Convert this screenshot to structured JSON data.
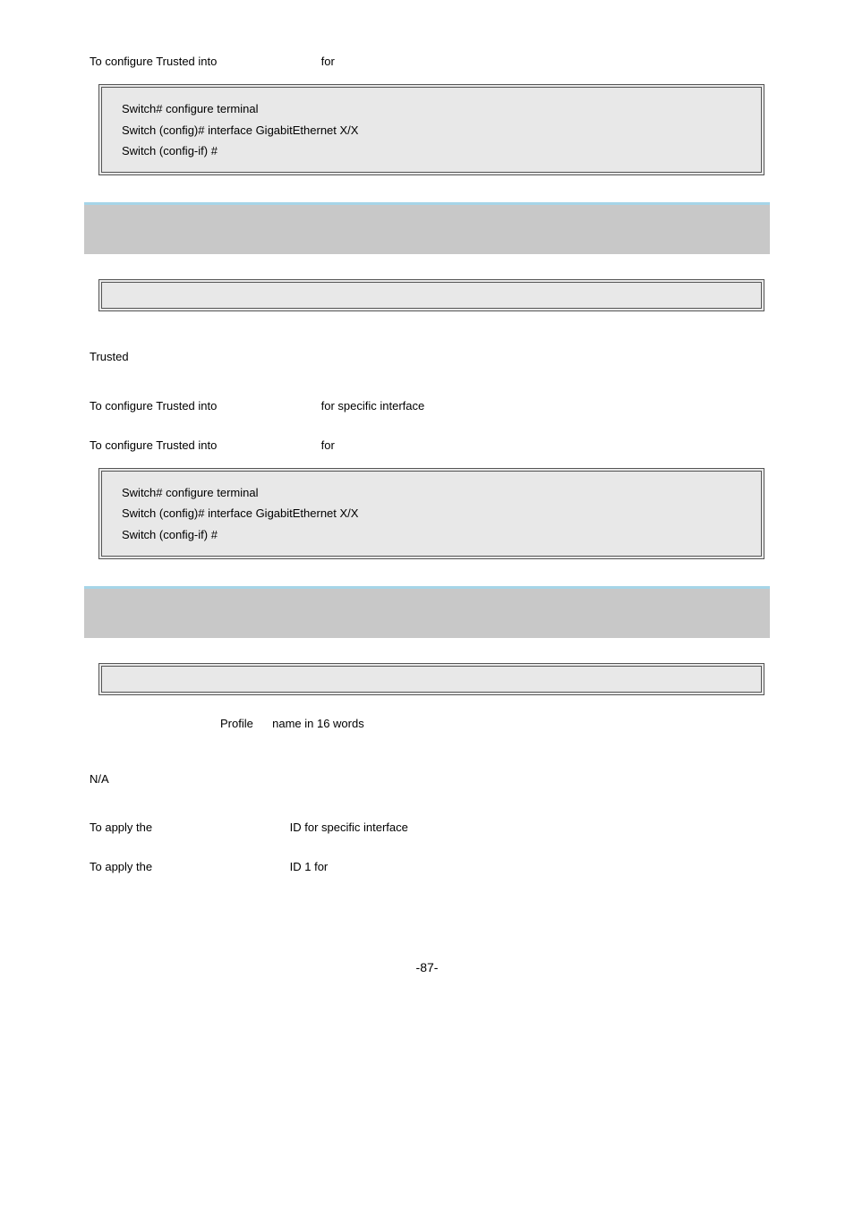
{
  "colors": {
    "background": "#ffffff",
    "text": "#000000",
    "code_bg": "#e8e8e8",
    "section_bg": "#c8c8c8",
    "section_top_border": "#a6d5e8",
    "border": "#555555"
  },
  "typography": {
    "font_family": "Arial, sans-serif",
    "body_fontsize": 13,
    "page_num_fontsize": 14
  },
  "section1": {
    "line1_left": "To configure Trusted into",
    "line1_right": "for",
    "code": {
      "l1": "Switch# configure terminal",
      "l2": "Switch (config)# interface GigabitEthernet X/X",
      "l3": "Switch (config-if) #"
    }
  },
  "section2": {
    "default_value": "Trusted",
    "usage_left": "To configure Trusted into",
    "usage_right": "for specific interface",
    "example_left": "To configure Trusted into",
    "example_right": "for",
    "code": {
      "l1": "Switch# configure terminal",
      "l2": "Switch (config)# interface GigabitEthernet X/X",
      "l3": "Switch (config-if) #"
    }
  },
  "section3": {
    "profile_label": "Profile",
    "profile_desc": "name in 16 words",
    "default_value": "N/A",
    "usage_left": "To apply the",
    "usage_right": "ID for specific interface",
    "example_left": "To apply the",
    "example_right": "ID 1 for"
  },
  "page_number": "-87-"
}
